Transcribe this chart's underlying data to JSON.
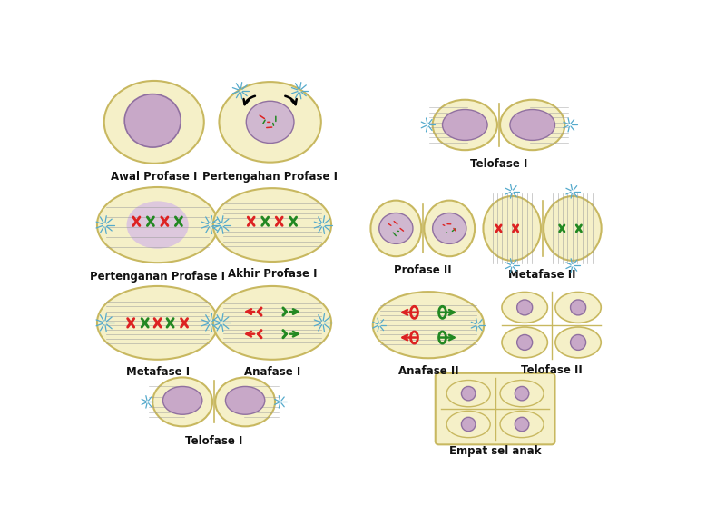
{
  "bg_color": "#ffffff",
  "cell_fill": "#f5f0c8",
  "cell_edge": "#c8b860",
  "nucleus_fill": "#c8a8c8",
  "nucleus_edge": "#9070a0",
  "spindle_color": "#999999",
  "chromosome_red": "#dd2222",
  "chromosome_green": "#228822",
  "aster_color": "#55aacc",
  "label_color": "#111111",
  "label_fontsize": 8.5,
  "labels": {
    "awal_profase": "Awal Profase I",
    "pertengahan_profase": "Pertengahan Profase I",
    "pertengahan_profase2": "Pertenganan Profase I",
    "akhir_profase": "Akhir Profase I",
    "metafase1": "Metafase I",
    "anafase1": "Anafase I",
    "telofase1_left": "Telofase I",
    "telofase1_top": "Telofase I",
    "profase2": "Profase II",
    "metafase2": "Metafase II",
    "anafase2": "Anafase II",
    "telofase2": "Telofase II",
    "empat_sel": "Empat sel anak"
  }
}
